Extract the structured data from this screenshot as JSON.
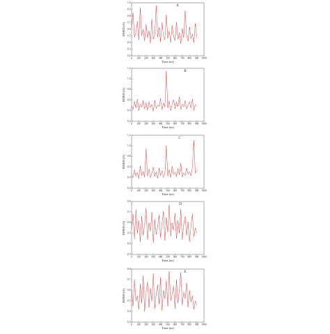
{
  "chart_data": [
    {
      "type": "line",
      "label": "A",
      "xlabel": "Time (ns)",
      "ylabel": "RMSD (Å)",
      "color": "#d62728",
      "x": [
        0,
        20,
        40,
        60,
        80,
        100,
        120,
        140,
        160,
        180,
        200,
        220,
        240,
        260,
        280,
        300,
        320,
        340,
        360,
        380,
        400,
        420,
        440,
        460,
        480,
        500,
        520,
        540,
        560,
        580,
        600,
        620,
        640,
        660,
        680,
        700,
        720,
        740,
        760,
        780,
        800,
        820,
        840,
        860,
        880,
        900
      ],
      "values": [
        0.62,
        0.85,
        0.48,
        0.55,
        0.72,
        0.44,
        0.93,
        0.5,
        0.6,
        0.42,
        0.68,
        0.47,
        0.58,
        0.39,
        0.75,
        0.45,
        0.52,
        0.96,
        0.48,
        0.63,
        0.41,
        0.7,
        0.5,
        0.44,
        0.82,
        0.46,
        0.57,
        0.4,
        0.66,
        0.49,
        0.43,
        0.71,
        0.45,
        0.55,
        0.38,
        0.61,
        0.47,
        0.88,
        0.5,
        0.42,
        0.64,
        0.46,
        0.53,
        0.4,
        0.69,
        0.48
      ],
      "xlim": [
        0,
        1000
      ],
      "xticks": [
        0,
        100,
        200,
        300,
        400,
        500,
        600,
        700,
        800,
        900,
        1000
      ],
      "ylim": [
        0.2,
        1.0
      ],
      "yticks": [
        0.2,
        0.3,
        0.4,
        0.5,
        0.6,
        0.7,
        0.8,
        0.9,
        {
          "value": 1,
          "label": "1.0"
        }
      ]
    },
    {
      "type": "line",
      "label": "B",
      "xlabel": "Time (ns)",
      "ylabel": "RMSD (Å)",
      "color": "#d62728",
      "x": [
        0,
        20,
        40,
        60,
        80,
        100,
        120,
        140,
        160,
        180,
        200,
        220,
        240,
        260,
        280,
        300,
        320,
        340,
        360,
        380,
        400,
        420,
        440,
        460,
        480,
        500,
        520,
        540,
        560,
        580,
        600,
        620,
        640,
        660,
        680,
        700,
        720,
        740,
        760,
        780,
        800,
        820,
        840,
        860,
        880,
        900
      ],
      "values": [
        0.5,
        0.42,
        0.58,
        0.45,
        0.62,
        0.4,
        0.53,
        0.47,
        0.6,
        0.43,
        0.55,
        0.41,
        0.57,
        0.46,
        0.52,
        0.39,
        0.6,
        0.44,
        0.5,
        0.48,
        0.63,
        0.42,
        0.55,
        0.47,
        1.15,
        0.45,
        0.58,
        0.4,
        0.52,
        0.61,
        0.44,
        0.56,
        0.48,
        0.66,
        0.42,
        0.53,
        0.47,
        0.59,
        0.43,
        0.5,
        0.57,
        0.45,
        0.62,
        0.41,
        0.52,
        0.48
      ],
      "xlim": [
        0,
        1000
      ],
      "xticks": [
        0,
        100,
        200,
        300,
        400,
        500,
        600,
        700,
        800,
        900,
        1000
      ],
      "ylim": [
        0.2,
        1.2
      ],
      "yticks": [
        0.2,
        0.4,
        0.6,
        0.8,
        {
          "value": 1,
          "label": "1.0"
        },
        1.2
      ]
    },
    {
      "type": "line",
      "label": "C",
      "xlabel": "Time (ns)",
      "ylabel": "RMSD (Å)",
      "color": "#d62728",
      "x": [
        0,
        20,
        40,
        60,
        80,
        100,
        120,
        140,
        160,
        180,
        200,
        220,
        240,
        260,
        280,
        300,
        320,
        340,
        360,
        380,
        400,
        420,
        440,
        460,
        480,
        500,
        520,
        540,
        560,
        580,
        600,
        620,
        640,
        660,
        680,
        700,
        720,
        740,
        760,
        780,
        800,
        820,
        840,
        860,
        880,
        900
      ],
      "values": [
        0.45,
        0.4,
        0.55,
        0.42,
        0.5,
        0.38,
        0.62,
        0.44,
        0.52,
        0.41,
        0.95,
        0.43,
        0.56,
        0.4,
        0.48,
        0.6,
        0.42,
        0.51,
        0.39,
        0.58,
        0.44,
        0.53,
        0.41,
        0.47,
        1.0,
        0.43,
        0.55,
        0.4,
        0.62,
        0.46,
        0.5,
        0.42,
        0.57,
        0.45,
        0.68,
        0.41,
        0.49,
        0.44,
        0.58,
        0.47,
        0.52,
        0.43,
        0.6,
        1.1,
        0.48,
        0.55
      ],
      "xlim": [
        0,
        1000
      ],
      "xticks": [
        0,
        100,
        200,
        300,
        400,
        500,
        600,
        700,
        800,
        900,
        1000
      ],
      "ylim": [
        0.2,
        1.2
      ],
      "yticks": [
        0.2,
        0.4,
        0.6,
        0.8,
        {
          "value": 1,
          "label": "1.0"
        },
        1.2
      ]
    },
    {
      "type": "line",
      "label": "D",
      "xlabel": "Time (ns)",
      "ylabel": "RMSD (Å)",
      "color": "#d62728",
      "x": [
        0,
        20,
        40,
        60,
        80,
        100,
        120,
        140,
        160,
        180,
        200,
        220,
        240,
        260,
        280,
        300,
        320,
        340,
        360,
        380,
        400,
        420,
        440,
        460,
        480,
        500,
        520,
        540,
        560,
        580,
        600,
        620,
        640,
        660,
        680,
        700,
        720,
        740,
        760,
        780,
        800,
        820,
        840,
        860,
        880,
        900
      ],
      "values": [
        0.55,
        0.68,
        0.45,
        0.72,
        0.5,
        0.62,
        0.42,
        0.66,
        0.48,
        0.58,
        0.74,
        0.44,
        0.6,
        0.52,
        0.7,
        0.41,
        0.63,
        0.49,
        0.56,
        0.67,
        0.46,
        0.59,
        0.71,
        0.43,
        0.65,
        0.51,
        0.77,
        0.47,
        0.6,
        0.53,
        0.69,
        0.45,
        0.62,
        0.5,
        0.73,
        0.44,
        0.58,
        0.66,
        0.48,
        0.61,
        0.42,
        0.57,
        0.68,
        0.47,
        0.55,
        0.5
      ],
      "xlim": [
        0,
        1000
      ],
      "xticks": [
        0,
        100,
        200,
        300,
        400,
        500,
        600,
        700,
        800,
        900,
        1000
      ],
      "ylim": [
        0.3,
        0.8
      ],
      "yticks": [
        0.3,
        0.4,
        0.5,
        0.6,
        0.7,
        0.8
      ]
    },
    {
      "type": "line",
      "label": "E",
      "xlabel": "Time (ns)",
      "ylabel": "RMSD (Å)",
      "color": "#d62728",
      "x": [
        0,
        20,
        40,
        60,
        80,
        100,
        120,
        140,
        160,
        180,
        200,
        220,
        240,
        260,
        280,
        300,
        320,
        340,
        360,
        380,
        400,
        420,
        440,
        460,
        480,
        500,
        520,
        540,
        560,
        580,
        600,
        620,
        640,
        660,
        680,
        700,
        720,
        740,
        760,
        780,
        800,
        820,
        840,
        860,
        880,
        900
      ],
      "values": [
        0.6,
        0.45,
        0.7,
        0.5,
        0.55,
        0.42,
        0.66,
        0.48,
        0.74,
        0.4,
        0.58,
        0.68,
        0.44,
        0.62,
        0.5,
        0.76,
        0.43,
        0.57,
        0.65,
        0.47,
        0.72,
        0.41,
        0.6,
        0.52,
        0.69,
        0.45,
        0.78,
        0.5,
        0.56,
        0.64,
        0.43,
        0.7,
        0.48,
        0.61,
        0.77,
        0.46,
        0.58,
        0.52,
        0.67,
        0.44,
        0.6,
        0.49,
        0.55,
        0.42,
        0.5,
        0.46
      ],
      "xlim": [
        0,
        1000
      ],
      "xticks": [
        0,
        100,
        200,
        300,
        400,
        500,
        600,
        700,
        800,
        900,
        1000
      ],
      "ylim": [
        0.3,
        0.8
      ],
      "yticks": [
        0.3,
        0.4,
        0.5,
        0.6,
        0.7,
        0.8
      ]
    }
  ]
}
